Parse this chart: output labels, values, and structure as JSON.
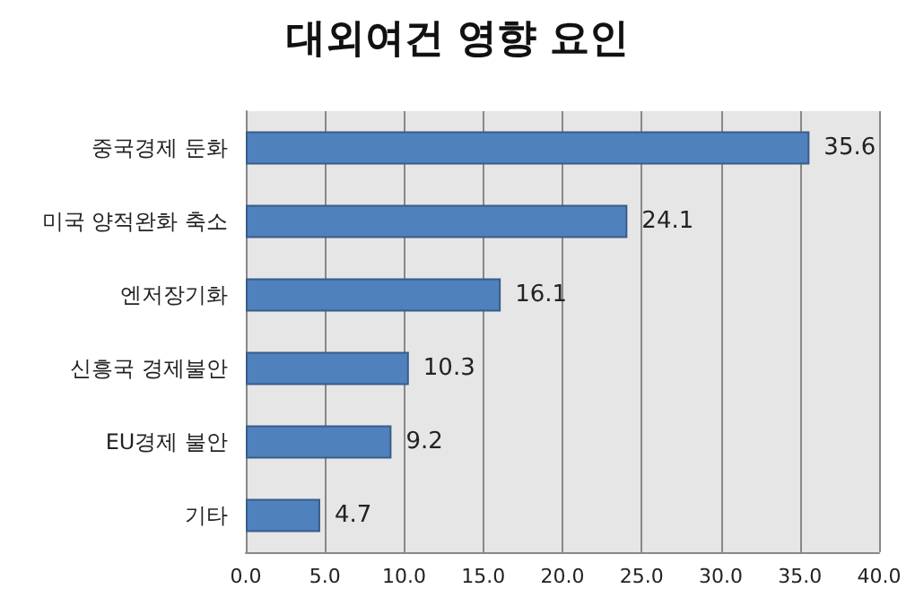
{
  "chart_data": {
    "type": "bar",
    "title": "대외여건 영향 요인",
    "orientation": "horizontal",
    "categories": [
      "중국경제 둔화",
      "미국 양적완화 축소",
      "엔저장기화",
      "신흥국 경제불안",
      "EU경제 불안",
      "기타"
    ],
    "values": [
      35.6,
      24.1,
      16.1,
      10.3,
      9.2,
      4.7
    ],
    "color": "#4f81bd",
    "xlim": [
      0,
      40
    ],
    "xticks": [
      {
        "value": 0,
        "label": "0.0"
      },
      {
        "value": 5,
        "label": "5.0"
      },
      {
        "value": 10,
        "label": "10.0"
      },
      {
        "value": 15,
        "label": "15.0"
      },
      {
        "value": 20,
        "label": "20.0"
      },
      {
        "value": 25,
        "label": "25.0"
      },
      {
        "value": 30,
        "label": "30.0"
      },
      {
        "value": 35,
        "label": "35.0"
      },
      {
        "value": 40,
        "label": "40.0"
      }
    ],
    "grid": "x",
    "data_labels": true
  }
}
